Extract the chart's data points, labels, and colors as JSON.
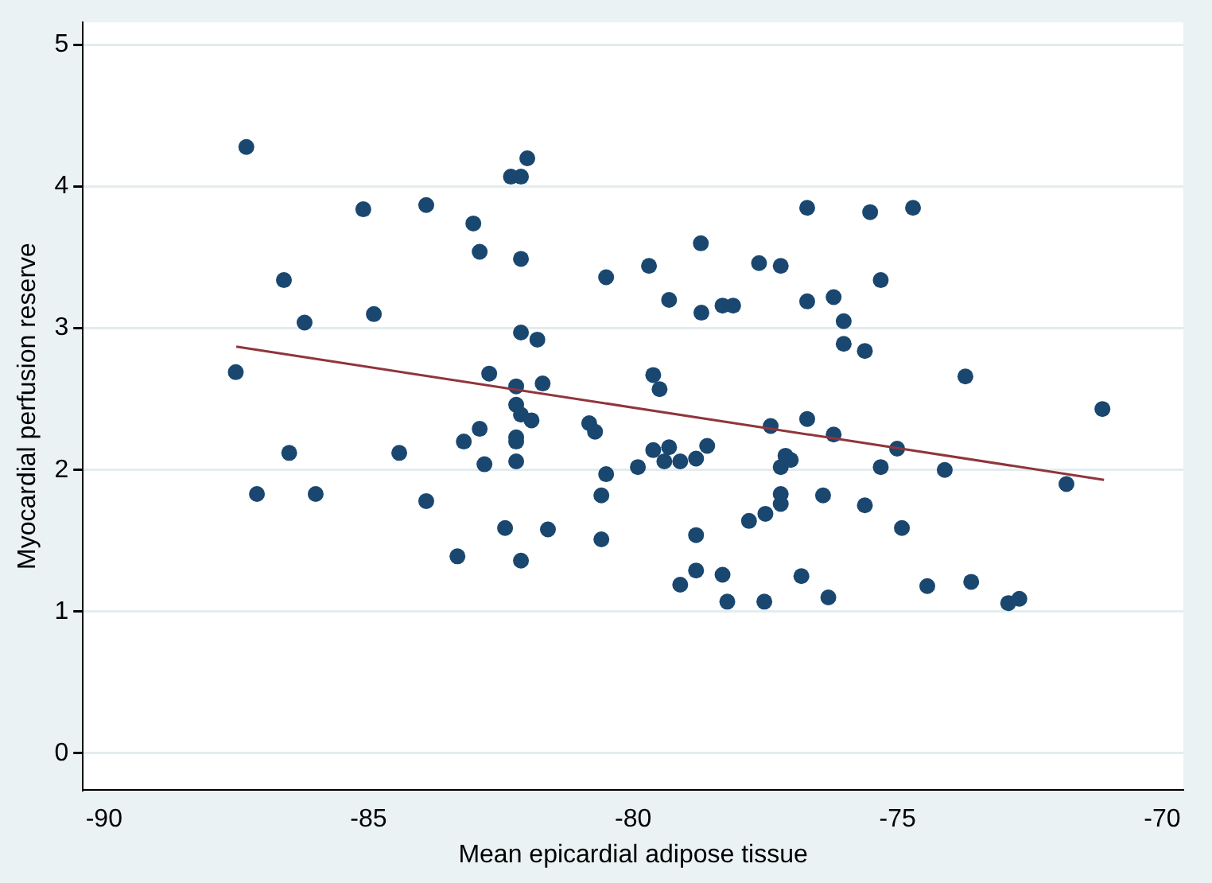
{
  "chart_data": {
    "type": "scatter",
    "xlabel": "Mean epicardial adipose tissue",
    "ylabel": "Myocardial perfusion reserve",
    "xlim": [
      -90.4,
      -69.6
    ],
    "ylim": [
      -0.26,
      5.16
    ],
    "xticks": [
      -90,
      -85,
      -80,
      -75,
      -70
    ],
    "yticks": [
      0,
      1,
      2,
      3,
      4,
      5
    ],
    "grid": "y",
    "legend": false,
    "marker": "circle",
    "series": [
      {
        "color": "#1a476f",
        "x": [
          -87.31,
          -82.0,
          -82.31,
          -82.12,
          -85.1,
          -83.91,
          -83.02,
          -82.9,
          -82.12,
          -86.6,
          -86.21,
          -84.9,
          -82.12,
          -81.81,
          -87.51,
          -82.72,
          -82.21,
          -81.71,
          -82.21,
          -82.12,
          -81.92,
          -82.9,
          -83.2,
          -82.21,
          -82.21,
          -86.5,
          -84.42,
          -82.81,
          -82.21,
          -87.11,
          -86.0,
          -83.91,
          -82.42,
          -81.61,
          -83.32,
          -82.12,
          -76.71,
          -75.52,
          -74.71,
          -78.72,
          -80.51,
          -79.7,
          -77.62,
          -77.21,
          -75.32,
          -79.32,
          -78.71,
          -78.31,
          -78.11,
          -76.71,
          -76.21,
          -76.02,
          -76.02,
          -75.62,
          -79.62,
          -79.5,
          -80.83,
          -80.72,
          -77.4,
          -76.71,
          -76.21,
          -75.01,
          -79.62,
          -79.32,
          -79.41,
          -79.11,
          -78.81,
          -78.6,
          -77.12,
          -77.21,
          -77.02,
          -80.51,
          -79.91,
          -75.32,
          -80.6,
          -77.21,
          -77.21,
          -76.41,
          -77.5,
          -77.81,
          -75.62,
          -80.6,
          -78.81,
          -74.92,
          -78.81,
          -79.11,
          -78.31,
          -76.82,
          -78.22,
          -77.52,
          -76.31,
          -74.44,
          -73.72,
          -71.13,
          -74.11,
          -71.81,
          -73.61,
          -72.91,
          -72.7
        ],
        "values": [
          4.28,
          4.2,
          4.07,
          4.07,
          3.84,
          3.87,
          3.74,
          3.54,
          3.49,
          3.34,
          3.04,
          3.1,
          2.97,
          2.92,
          2.69,
          2.68,
          2.59,
          2.61,
          2.46,
          2.39,
          2.35,
          2.29,
          2.2,
          2.23,
          2.2,
          2.12,
          2.12,
          2.04,
          2.06,
          1.83,
          1.83,
          1.78,
          1.59,
          1.58,
          1.39,
          1.36,
          3.85,
          3.82,
          3.85,
          3.6,
          3.36,
          3.44,
          3.46,
          3.44,
          3.34,
          3.2,
          3.11,
          3.16,
          3.16,
          3.19,
          3.22,
          3.05,
          2.89,
          2.84,
          2.67,
          2.57,
          2.33,
          2.27,
          2.31,
          2.36,
          2.25,
          2.15,
          2.14,
          2.16,
          2.06,
          2.06,
          2.08,
          2.17,
          2.1,
          2.02,
          2.07,
          1.97,
          2.02,
          2.02,
          1.82,
          1.83,
          1.76,
          1.82,
          1.69,
          1.64,
          1.75,
          1.51,
          1.54,
          1.59,
          1.29,
          1.19,
          1.26,
          1.25,
          1.07,
          1.07,
          1.1,
          1.18,
          2.66,
          2.43,
          2.0,
          1.9,
          1.21,
          1.06,
          1.09
        ]
      },
      {
        "type": "line",
        "marker": "none",
        "color": "#90353b",
        "x": [
          -87.5,
          -71.1
        ],
        "values": [
          2.87,
          1.93
        ]
      }
    ]
  }
}
